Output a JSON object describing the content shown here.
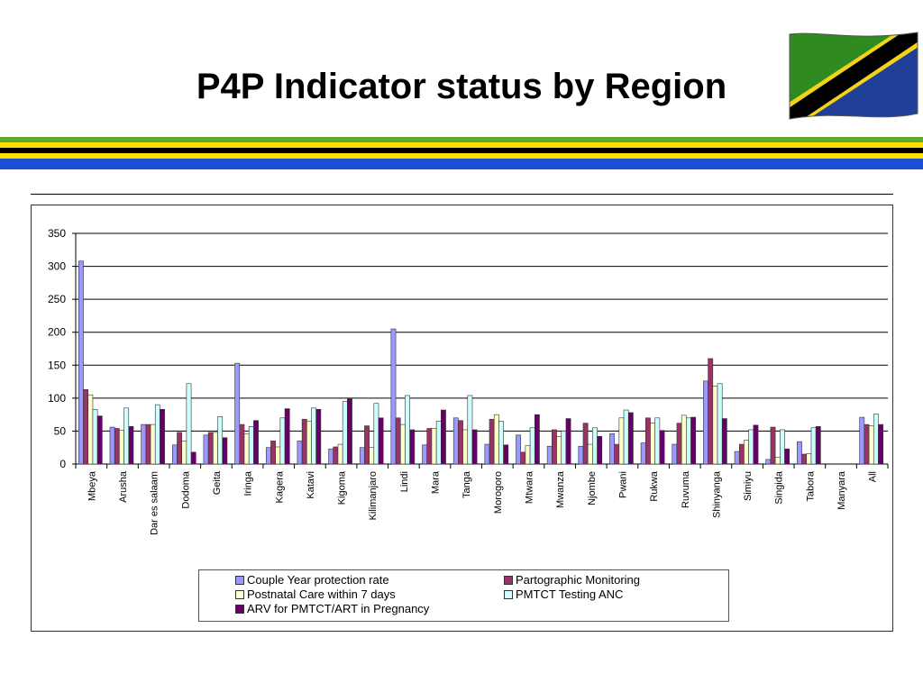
{
  "slide": {
    "title": "P4P Indicator status by Region",
    "flag_icon": "tanzania-flag-icon",
    "stripe_colors": [
      "#5aaa2c",
      "#ffde00",
      "#000000",
      "#ffde00",
      "#1b4fd6",
      "#1b4fd6"
    ]
  },
  "chart_data": {
    "type": "bar",
    "title": "",
    "xlabel": "",
    "ylabel": "",
    "ylim": [
      0,
      350
    ],
    "yticks": [
      0,
      50,
      100,
      150,
      200,
      250,
      300,
      350
    ],
    "grid": true,
    "legend_position": "bottom",
    "categories": [
      "Mbeya",
      "Arusha",
      "Dar es salaam",
      "Dodoma",
      "Geita",
      "Iringa",
      "Kagera",
      "Katavi",
      "Kigoma",
      "Kilimanjaro",
      "Lindi",
      "Mara",
      "Tanga",
      "Morogoro",
      "Mtwara",
      "Mwanza",
      "Njombe",
      "Pwani",
      "Rukwa",
      "Ruvuma",
      "Shinyanga",
      "Simiyu",
      "Singida",
      "Tabora",
      "Manyara",
      "All"
    ],
    "series": [
      {
        "name": "Couple Year protection rate",
        "color": "#9999ff",
        "values": [
          308,
          56,
          60,
          29,
          44,
          153,
          25,
          35,
          23,
          25,
          205,
          29,
          70,
          30,
          44,
          27,
          27,
          46,
          32,
          30,
          126,
          19,
          7,
          34,
          0,
          71
        ]
      },
      {
        "name": "Partographic Monitoring",
        "color": "#993366",
        "values": [
          113,
          54,
          60,
          48,
          48,
          60,
          35,
          68,
          26,
          58,
          70,
          54,
          66,
          68,
          18,
          52,
          62,
          30,
          70,
          62,
          160,
          30,
          56,
          15,
          0,
          60
        ]
      },
      {
        "name": "Postnatal Care within 7 days",
        "color": "#ffffcc",
        "values": [
          105,
          51,
          60,
          35,
          48,
          46,
          26,
          65,
          30,
          25,
          60,
          54,
          52,
          75,
          28,
          42,
          30,
          70,
          62,
          74,
          118,
          36,
          10,
          16,
          0,
          58
        ]
      },
      {
        "name": "PMTCT Testing ANC",
        "color": "#ccffff",
        "values": [
          83,
          85,
          90,
          122,
          72,
          57,
          70,
          85,
          95,
          92,
          104,
          65,
          104,
          65,
          55,
          50,
          55,
          82,
          70,
          70,
          122,
          52,
          52,
          55,
          0,
          76
        ]
      },
      {
        "name": "ARV for PMTCT/ART in Pregnancy",
        "color": "#660066",
        "values": [
          73,
          57,
          83,
          18,
          40,
          66,
          84,
          83,
          99,
          70,
          52,
          82,
          52,
          29,
          75,
          69,
          42,
          78,
          51,
          71,
          69,
          59,
          23,
          57,
          0,
          60
        ]
      }
    ]
  }
}
